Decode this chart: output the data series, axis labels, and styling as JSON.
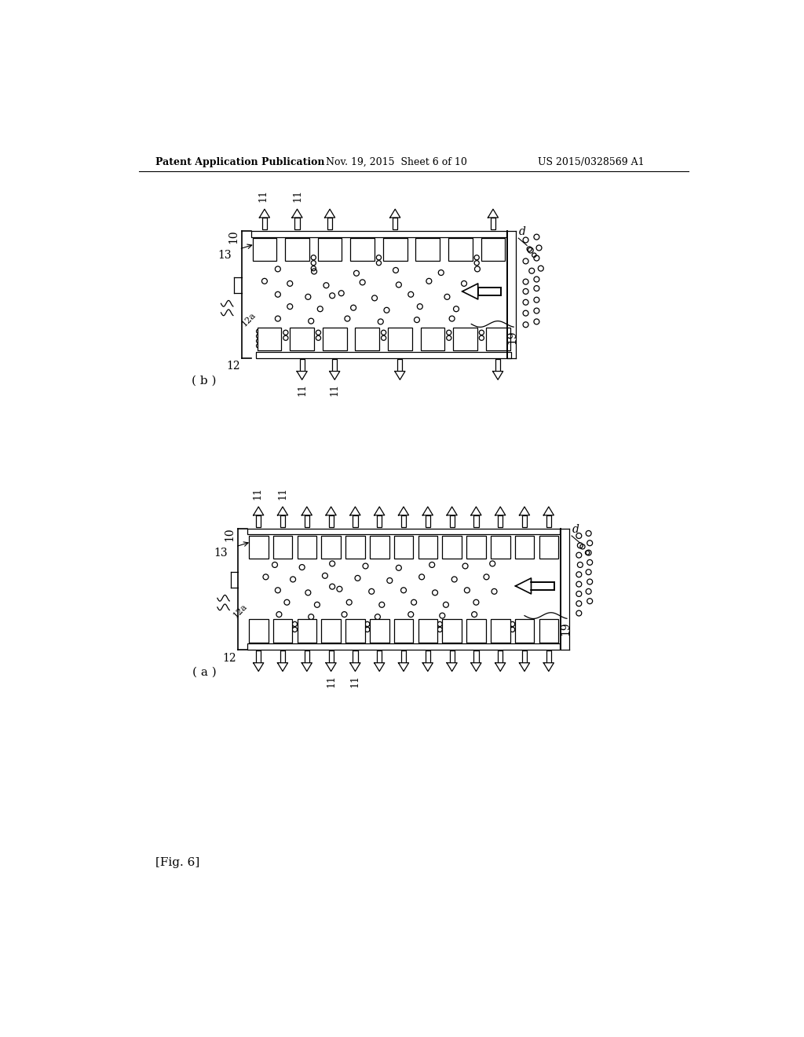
{
  "bg_color": "#ffffff",
  "header_text": "Patent Application Publication",
  "header_date": "Nov. 19, 2015  Sheet 6 of 10",
  "header_patent": "US 2015/0328569 A1",
  "fig_label": "[Fig. 6]"
}
